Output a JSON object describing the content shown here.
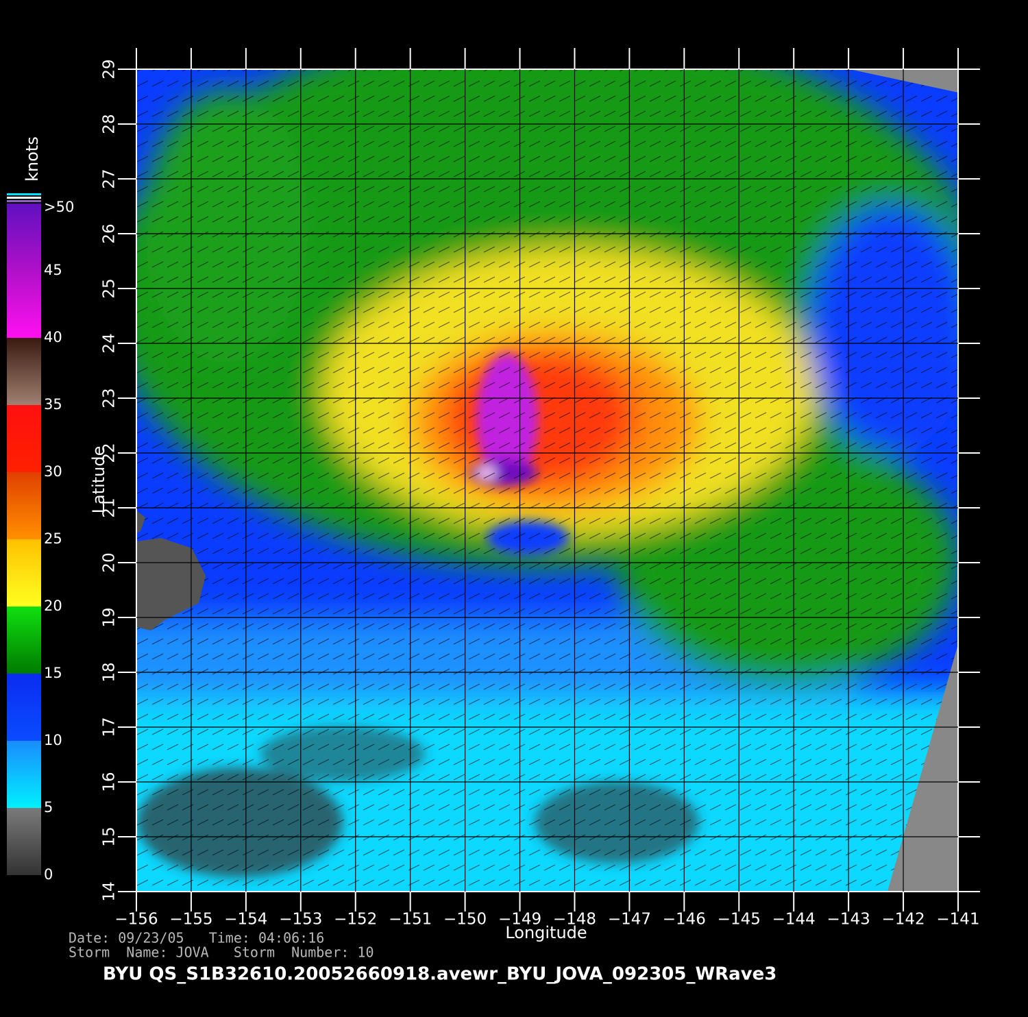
{
  "chart_data": {
    "type": "heatmap",
    "xlabel": "Longitude",
    "ylabel": "Latitude",
    "xlim": [
      -156,
      -141
    ],
    "ylim": [
      14,
      29
    ],
    "xticks": [
      {
        "value": -156,
        "label": "−156"
      },
      {
        "value": -155,
        "label": "−155"
      },
      {
        "value": -154,
        "label": "−154"
      },
      {
        "value": -153,
        "label": "−153"
      },
      {
        "value": -152,
        "label": "−152"
      },
      {
        "value": -151,
        "label": "−151"
      },
      {
        "value": -150,
        "label": "−150"
      },
      {
        "value": -149,
        "label": "−149"
      },
      {
        "value": -148,
        "label": "−148"
      },
      {
        "value": -147,
        "label": "−147"
      },
      {
        "value": -146,
        "label": "−146"
      },
      {
        "value": -145,
        "label": "−145"
      },
      {
        "value": -144,
        "label": "−144"
      },
      {
        "value": -143,
        "label": "−143"
      },
      {
        "value": -142,
        "label": "−142"
      },
      {
        "value": -141,
        "label": "−141"
      }
    ],
    "yticks": [
      14,
      15,
      16,
      17,
      18,
      19,
      20,
      21,
      22,
      23,
      24,
      25,
      26,
      27,
      28,
      29
    ],
    "grid": true,
    "colorbar": {
      "label": "knots",
      "ticks": [
        0,
        5,
        10,
        15,
        20,
        25,
        30,
        35,
        40,
        45,
        {
          "value": 50,
          "label": ">50"
        }
      ],
      "colors": [
        [
          "#333333",
          "#7a7a7a"
        ],
        [
          "#00f0ff",
          "#1a8cff"
        ],
        [
          "#0a4cff",
          "#0a2cf0"
        ],
        [
          "#007a00",
          "#10e010"
        ],
        [
          "#ffff20",
          "#ffc000"
        ],
        [
          "#ff9000",
          "#e04000"
        ],
        [
          "#ff2000",
          "#ff1010"
        ],
        [
          "#a08070",
          "#3a1a10"
        ],
        [
          "#ff10f0",
          "#b010c8"
        ],
        [
          "#b010c8",
          "#6010c0"
        ]
      ]
    }
  },
  "footer": {
    "line1": "Date: 09/23/05   Time: 04:06:16",
    "line2": "Storm  Name: JOVA   Storm  Number: 10",
    "id": "BYU  QS_S1B32610.20052660918.avewr_BYU_JOVA_092305_WRave3"
  }
}
